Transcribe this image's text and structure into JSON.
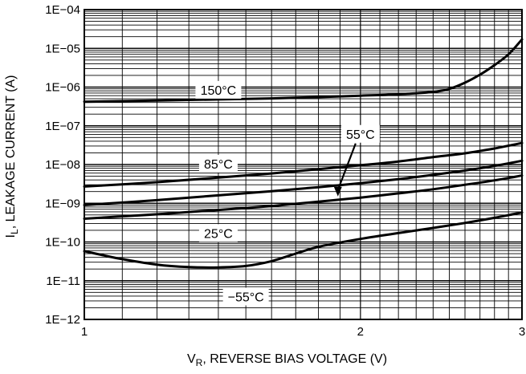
{
  "chart_data": {
    "type": "line",
    "title": "",
    "xlabel": {
      "main": "V",
      "sub": "R",
      "rest": ", REVERSE BIAS VOLTAGE (V)"
    },
    "ylabel": {
      "main": "I",
      "sub": "L",
      "rest": ", LEAKAGE CURRENT (A)"
    },
    "x_scale": "log",
    "y_scale": "log",
    "xlim": [
      1,
      3
    ],
    "ylim": [
      1e-12,
      0.0001
    ],
    "x_ticks": [
      1,
      2,
      3
    ],
    "x_tick_labels": [
      "1",
      "2",
      "3"
    ],
    "y_ticks": [
      1e-12,
      1e-11,
      1e-10,
      1e-09,
      1e-08,
      1e-07,
      1e-06,
      1e-05,
      0.0001
    ],
    "y_tick_labels": [
      "1E−12",
      "1E−11",
      "1E−10",
      "1E−09",
      "1E−08",
      "1E−07",
      "1E−06",
      "1E−05",
      "1E−04"
    ],
    "grid": true,
    "legend": "none",
    "series": [
      {
        "name": "150°C",
        "label_at": [
          1.4,
          8.5e-07
        ],
        "x": [
          1,
          1.2,
          1.4,
          1.6,
          1.8,
          2.0,
          2.2,
          2.4,
          2.5,
          2.6,
          2.7,
          2.8,
          2.9,
          3.0
        ],
        "y": [
          4.2e-07,
          4.5e-07,
          4.8e-07,
          5.1e-07,
          5.5e-07,
          6e-07,
          6.5e-07,
          7.5e-07,
          9e-07,
          1.3e-06,
          2.1e-06,
          3.7e-06,
          7e-06,
          1.7e-05
        ]
      },
      {
        "name": "85°C",
        "label_at": [
          1.4,
          1.05e-08
        ],
        "x": [
          1,
          1.2,
          1.4,
          1.6,
          1.8,
          2.0,
          2.2,
          2.4,
          2.6,
          2.8,
          3.0
        ],
        "y": [
          2.7e-09,
          3.5e-09,
          4.6e-09,
          5.9e-09,
          7.6e-09,
          9.6e-09,
          1.2e-08,
          1.55e-08,
          1.95e-08,
          2.6e-08,
          3.6e-08
        ]
      },
      {
        "name": "55°C",
        "label_at": [
          2.0,
          6.2e-08
        ],
        "arrow_to": [
          1.89,
          1.5e-09
        ],
        "x": [
          1,
          1.2,
          1.4,
          1.6,
          1.8,
          2.0,
          2.2,
          2.4,
          2.6,
          2.8,
          3.0
        ],
        "y": [
          9e-10,
          1.2e-09,
          1.6e-09,
          2.05e-09,
          2.6e-09,
          3.3e-09,
          4.2e-09,
          5.4e-09,
          7e-09,
          9.2e-09,
          1.25e-08
        ]
      },
      {
        "name": "25°C",
        "label_at": [
          1.4,
          1.7e-10
        ],
        "x": [
          1,
          1.2,
          1.4,
          1.6,
          1.8,
          2.0,
          2.2,
          2.4,
          2.6,
          2.8,
          3.0
        ],
        "y": [
          4e-10,
          5.2e-10,
          6.7e-10,
          8.5e-10,
          1.1e-09,
          1.4e-09,
          1.8e-09,
          2.3e-09,
          3e-09,
          3.9e-09,
          5.2e-09
        ]
      },
      {
        "name": "−55°C",
        "label_at": [
          1.5,
          3.9e-12
        ],
        "x": [
          1,
          1.05,
          1.1,
          1.2,
          1.3,
          1.4,
          1.5,
          1.6,
          1.7,
          1.8,
          2.0,
          2.2,
          2.4,
          2.6,
          2.8,
          3.0
        ],
        "y": [
          5.8e-11,
          4.5e-11,
          3.6e-11,
          2.6e-11,
          2.25e-11,
          2.2e-11,
          2.4e-11,
          3.2e-11,
          5e-11,
          7.5e-11,
          1.2e-10,
          1.7e-10,
          2.3e-10,
          3.1e-10,
          4.2e-10,
          5.8e-10
        ]
      }
    ]
  }
}
